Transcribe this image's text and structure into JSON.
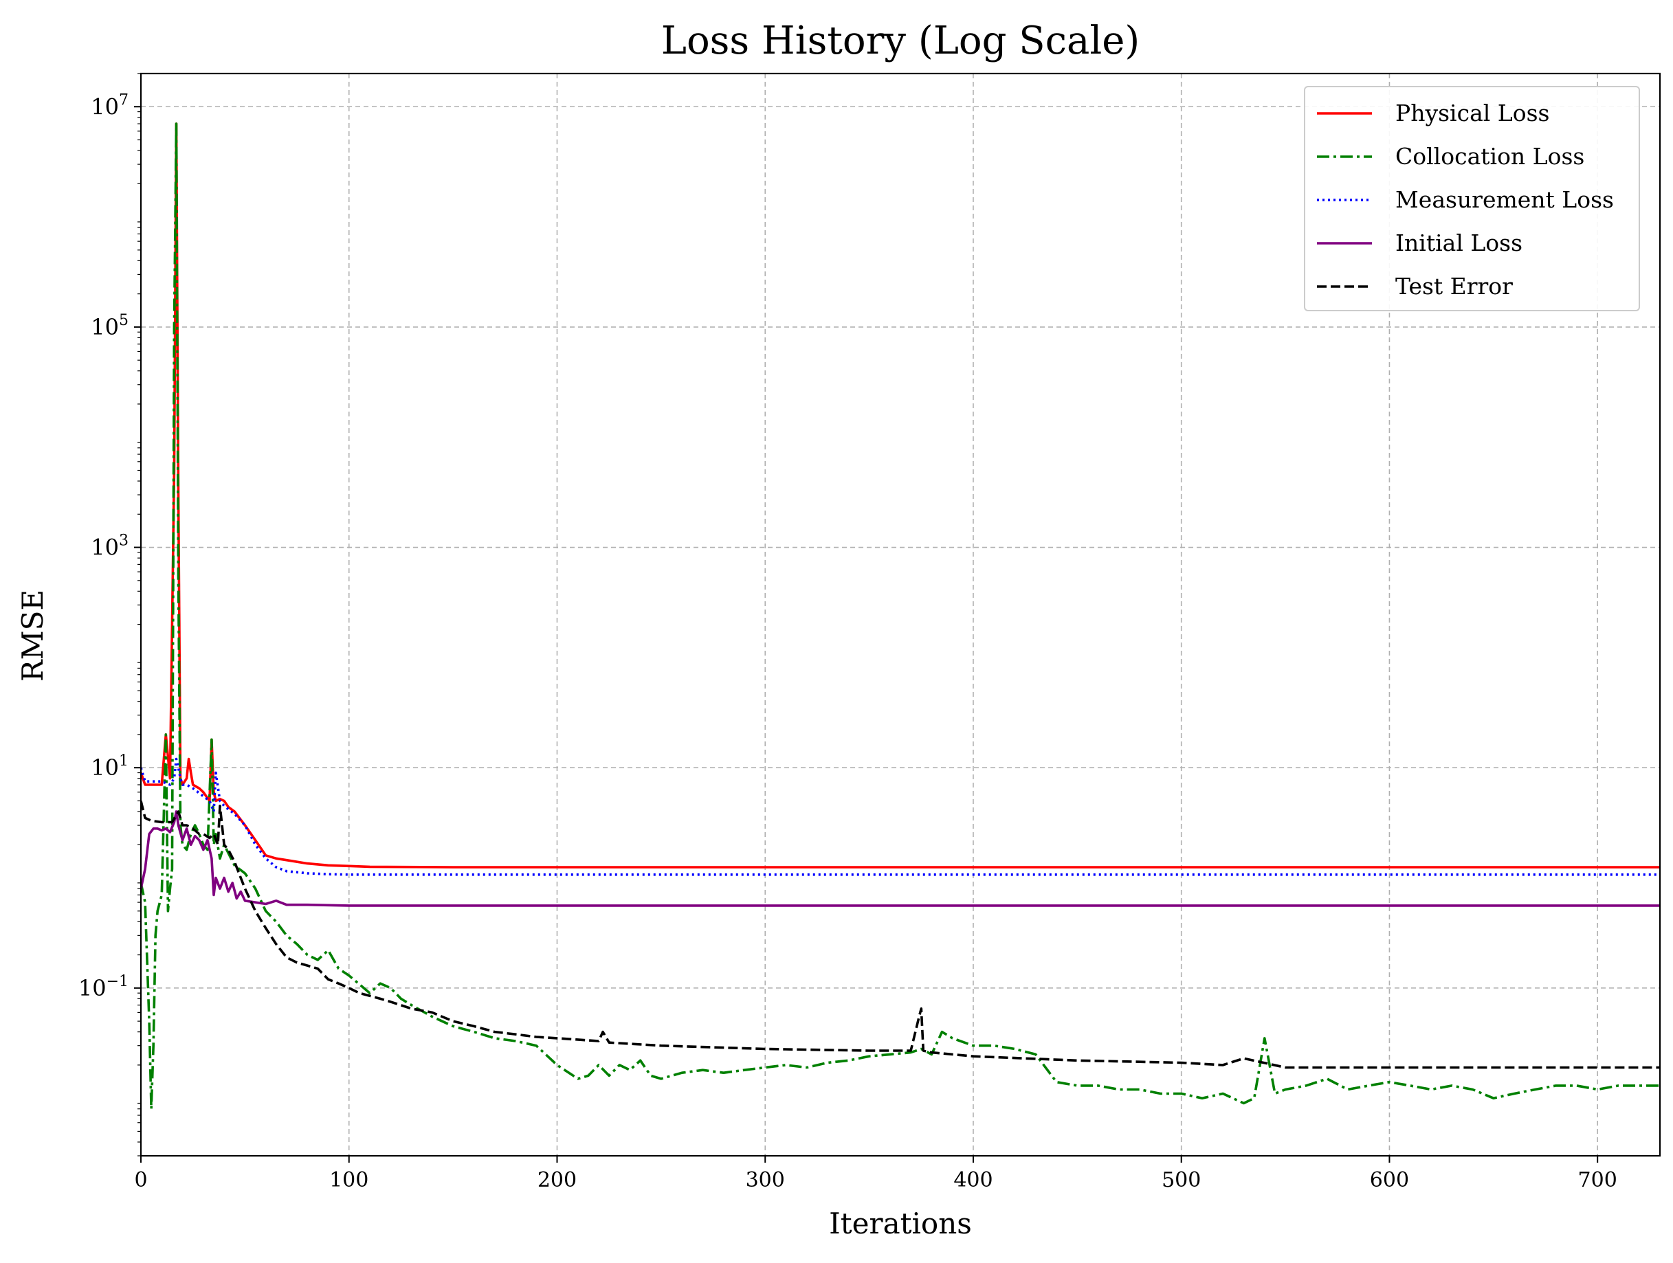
{
  "chart_data": {
    "type": "line",
    "title": "Loss History (Log Scale)",
    "xlabel": "Iterations",
    "ylabel": "RMSE",
    "xscale": "linear",
    "yscale": "log",
    "xlim": [
      0,
      730
    ],
    "ylim": [
      0.003,
      20000000
    ],
    "x_ticks": [
      0,
      100,
      200,
      300,
      400,
      500,
      600,
      700
    ],
    "x_tick_labels": [
      "0",
      "100",
      "200",
      "300",
      "400",
      "500",
      "600",
      "700"
    ],
    "y_ticks": [
      0.1,
      10,
      1000,
      100000,
      10000000
    ],
    "y_tick_labels": [
      {
        "base": "10",
        "exp": "−1"
      },
      {
        "base": "10",
        "exp": "1"
      },
      {
        "base": "10",
        "exp": "3"
      },
      {
        "base": "10",
        "exp": "5"
      },
      {
        "base": "10",
        "exp": "7"
      }
    ],
    "grid": true,
    "legend_position": "top-right",
    "series": [
      {
        "name": "Physical Loss",
        "color": "#ff0000",
        "style": "solid",
        "x": [
          0,
          2,
          5,
          10,
          12,
          14,
          16,
          17,
          18,
          19,
          20,
          22,
          23,
          24,
          25,
          28,
          30,
          33,
          34,
          35,
          36,
          38,
          40,
          42,
          45,
          50,
          55,
          60,
          65,
          70,
          80,
          90,
          100,
          110,
          150,
          200,
          300,
          400,
          500,
          600,
          700,
          730
        ],
        "y": [
          9,
          7,
          7,
          7,
          20,
          8,
          5000,
          7000000,
          3000,
          8,
          7,
          8,
          12,
          9,
          7,
          6.5,
          6,
          5,
          18,
          6,
          5,
          5.2,
          5,
          4.4,
          4,
          3,
          2.2,
          1.6,
          1.5,
          1.45,
          1.35,
          1.3,
          1.28,
          1.26,
          1.25,
          1.25,
          1.25,
          1.25,
          1.25,
          1.25,
          1.25,
          1.25
        ]
      },
      {
        "name": "Collocation Loss",
        "color": "#008000",
        "style": "dashdot",
        "x": [
          0,
          2,
          4,
          5,
          6,
          7,
          8,
          10,
          12,
          13,
          14,
          15,
          16,
          17,
          18,
          19,
          20,
          22,
          24,
          26,
          28,
          30,
          32,
          34,
          35,
          36,
          38,
          40,
          45,
          50,
          55,
          60,
          65,
          70,
          75,
          80,
          85,
          90,
          95,
          100,
          110,
          115,
          120,
          125,
          130,
          140,
          150,
          160,
          170,
          180,
          190,
          200,
          210,
          215,
          220,
          225,
          230,
          235,
          240,
          245,
          250,
          260,
          270,
          280,
          290,
          300,
          310,
          320,
          330,
          340,
          350,
          360,
          370,
          375,
          380,
          385,
          390,
          400,
          410,
          420,
          430,
          440,
          450,
          460,
          470,
          480,
          490,
          500,
          510,
          520,
          530,
          535,
          540,
          545,
          550,
          560,
          570,
          580,
          590,
          600,
          610,
          620,
          630,
          640,
          650,
          660,
          670,
          680,
          690,
          700,
          710,
          720,
          730
        ],
        "y": [
          0.9,
          0.6,
          0.05,
          0.008,
          0.03,
          0.3,
          0.5,
          0.7,
          20,
          0.5,
          0.8,
          1.2,
          100000,
          7000000,
          500,
          3,
          2,
          1.8,
          2.5,
          3,
          2.5,
          2,
          1.8,
          18,
          2,
          2.5,
          1.5,
          2,
          1.3,
          1.1,
          0.8,
          0.5,
          0.4,
          0.3,
          0.25,
          0.2,
          0.18,
          0.22,
          0.15,
          0.13,
          0.09,
          0.11,
          0.1,
          0.08,
          0.07,
          0.055,
          0.045,
          0.04,
          0.035,
          0.033,
          0.03,
          0.02,
          0.015,
          0.016,
          0.02,
          0.016,
          0.02,
          0.018,
          0.022,
          0.016,
          0.015,
          0.017,
          0.018,
          0.017,
          0.018,
          0.019,
          0.02,
          0.019,
          0.021,
          0.022,
          0.024,
          0.025,
          0.026,
          0.028,
          0.025,
          0.04,
          0.035,
          0.03,
          0.03,
          0.028,
          0.025,
          0.014,
          0.013,
          0.013,
          0.012,
          0.012,
          0.011,
          0.011,
          0.01,
          0.011,
          0.009,
          0.01,
          0.035,
          0.011,
          0.012,
          0.013,
          0.015,
          0.012,
          0.013,
          0.014,
          0.013,
          0.012,
          0.013,
          0.012,
          0.01,
          0.011,
          0.012,
          0.013,
          0.013,
          0.012,
          0.013,
          0.013,
          0.013
        ]
      },
      {
        "name": "Measurement Loss",
        "color": "#0000ff",
        "style": "dotted",
        "x": [
          0,
          2,
          5,
          10,
          14,
          16,
          17,
          18,
          19,
          20,
          22,
          25,
          30,
          33,
          35,
          36,
          38,
          40,
          45,
          50,
          55,
          60,
          65,
          70,
          80,
          90,
          100,
          150,
          200,
          300,
          400,
          500,
          600,
          700,
          730
        ],
        "y": [
          10,
          7.5,
          7.5,
          7.5,
          7,
          8,
          12,
          10,
          8,
          7,
          7,
          6.5,
          5.5,
          5,
          4,
          9,
          5,
          4.5,
          3.8,
          3,
          2,
          1.5,
          1.25,
          1.15,
          1.1,
          1.08,
          1.07,
          1.07,
          1.07,
          1.07,
          1.07,
          1.07,
          1.07,
          1.07,
          1.07
        ]
      },
      {
        "name": "Initial Loss",
        "color": "#800080",
        "style": "solid",
        "x": [
          0,
          2,
          4,
          6,
          8,
          10,
          12,
          14,
          16,
          17,
          18,
          20,
          22,
          24,
          26,
          28,
          30,
          32,
          34,
          35,
          36,
          38,
          40,
          42,
          44,
          46,
          48,
          50,
          55,
          60,
          65,
          70,
          80,
          100,
          150,
          200,
          300,
          400,
          500,
          600,
          700,
          730
        ],
        "y": [
          0.8,
          1.2,
          2.5,
          2.8,
          2.8,
          2.7,
          2.8,
          2.6,
          3.2,
          4,
          3,
          2.2,
          2.8,
          2,
          2.4,
          2.2,
          1.8,
          2.2,
          1.5,
          0.7,
          1.0,
          0.8,
          1.0,
          0.75,
          0.9,
          0.65,
          0.75,
          0.62,
          0.6,
          0.58,
          0.62,
          0.57,
          0.57,
          0.56,
          0.56,
          0.56,
          0.56,
          0.56,
          0.56,
          0.56,
          0.56,
          0.56
        ]
      },
      {
        "name": "Test Error",
        "color": "#000000",
        "style": "dashed",
        "x": [
          0,
          2,
          5,
          10,
          15,
          18,
          20,
          22,
          25,
          28,
          30,
          33,
          35,
          37,
          38,
          40,
          42,
          45,
          48,
          50,
          55,
          60,
          65,
          70,
          75,
          80,
          85,
          90,
          95,
          100,
          105,
          110,
          115,
          120,
          130,
          140,
          150,
          160,
          170,
          180,
          190,
          200,
          220,
          222,
          225,
          250,
          300,
          350,
          370,
          374,
          375,
          376,
          380,
          400,
          450,
          500,
          520,
          530,
          550,
          600,
          650,
          700,
          730
        ],
        "y": [
          5,
          3.5,
          3.3,
          3.2,
          3.2,
          4,
          3,
          3,
          2.8,
          2.5,
          2.5,
          2.3,
          2.5,
          2.0,
          4.5,
          2.0,
          1.8,
          1.4,
          1.0,
          0.8,
          0.5,
          0.35,
          0.25,
          0.19,
          0.17,
          0.16,
          0.15,
          0.12,
          0.11,
          0.1,
          0.09,
          0.085,
          0.08,
          0.075,
          0.065,
          0.06,
          0.05,
          0.045,
          0.04,
          0.038,
          0.036,
          0.035,
          0.033,
          0.04,
          0.032,
          0.03,
          0.028,
          0.027,
          0.027,
          0.055,
          0.065,
          0.027,
          0.026,
          0.024,
          0.022,
          0.021,
          0.02,
          0.023,
          0.019,
          0.019,
          0.019,
          0.019,
          0.019
        ]
      }
    ]
  }
}
